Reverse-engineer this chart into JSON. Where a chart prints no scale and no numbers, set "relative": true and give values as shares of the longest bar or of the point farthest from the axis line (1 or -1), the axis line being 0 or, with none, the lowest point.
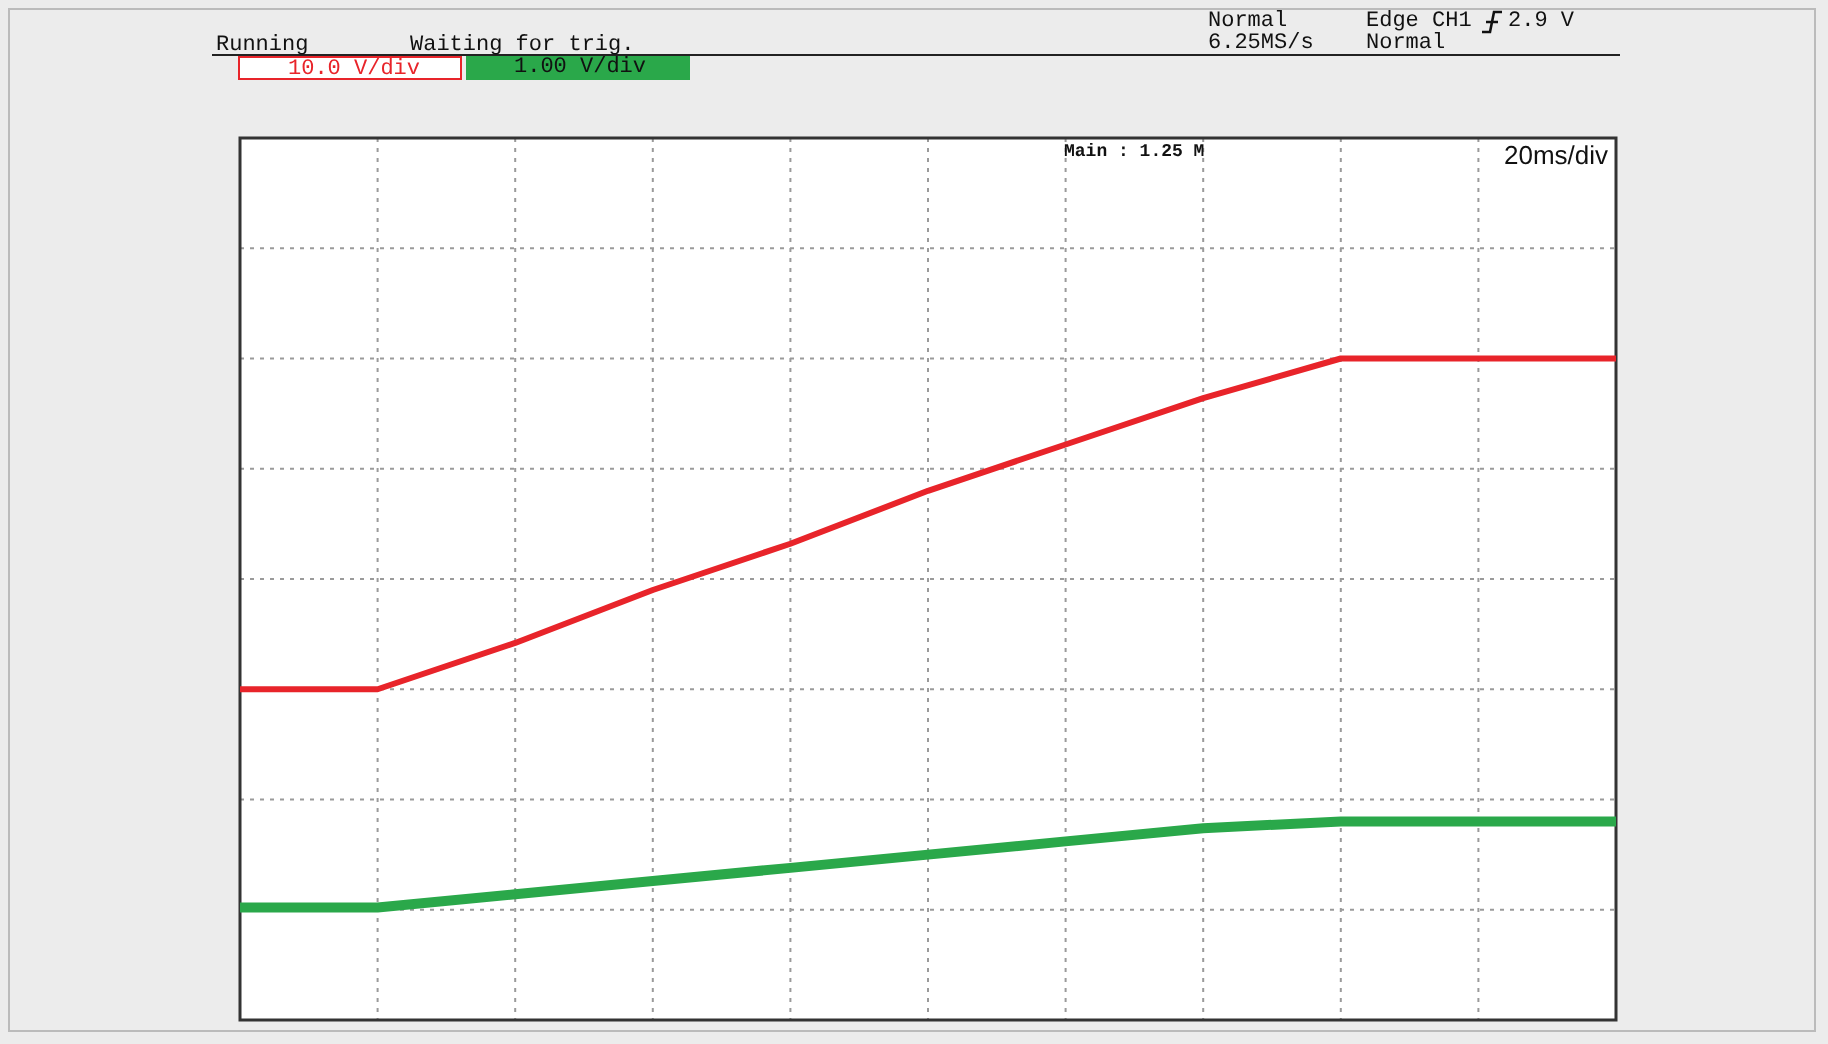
{
  "chart_data": {
    "type": "line",
    "relative": true,
    "grid": true,
    "marker": "none",
    "line_style": "solid",
    "legend": false,
    "categories": [
      null,
      null,
      null,
      null,
      null,
      null,
      null,
      null,
      null,
      null,
      null
    ],
    "series": [
      {
        "color": "#e8242a",
        "values": [
          0.5,
          0.5,
          0.57,
          0.65,
          0.72,
          0.8,
          0.87,
          0.94,
          1,
          1,
          1
        ]
      },
      {
        "color": "#2aa84a",
        "values": [
          0.17,
          0.17,
          0.19,
          0.21,
          0.23,
          0.25,
          0.27,
          0.29,
          0.3,
          0.3,
          0.3
        ]
      }
    ],
    "annotations": [
      "Running",
      "Waiting for trig.",
      "10.0 V/div",
      "1.00 V/div",
      "Normal",
      "6.25MS/s",
      "Edge CH1",
      "2.9 V",
      "Normal",
      "Main : 1.25 M",
      "20ms/div"
    ]
  }
}
